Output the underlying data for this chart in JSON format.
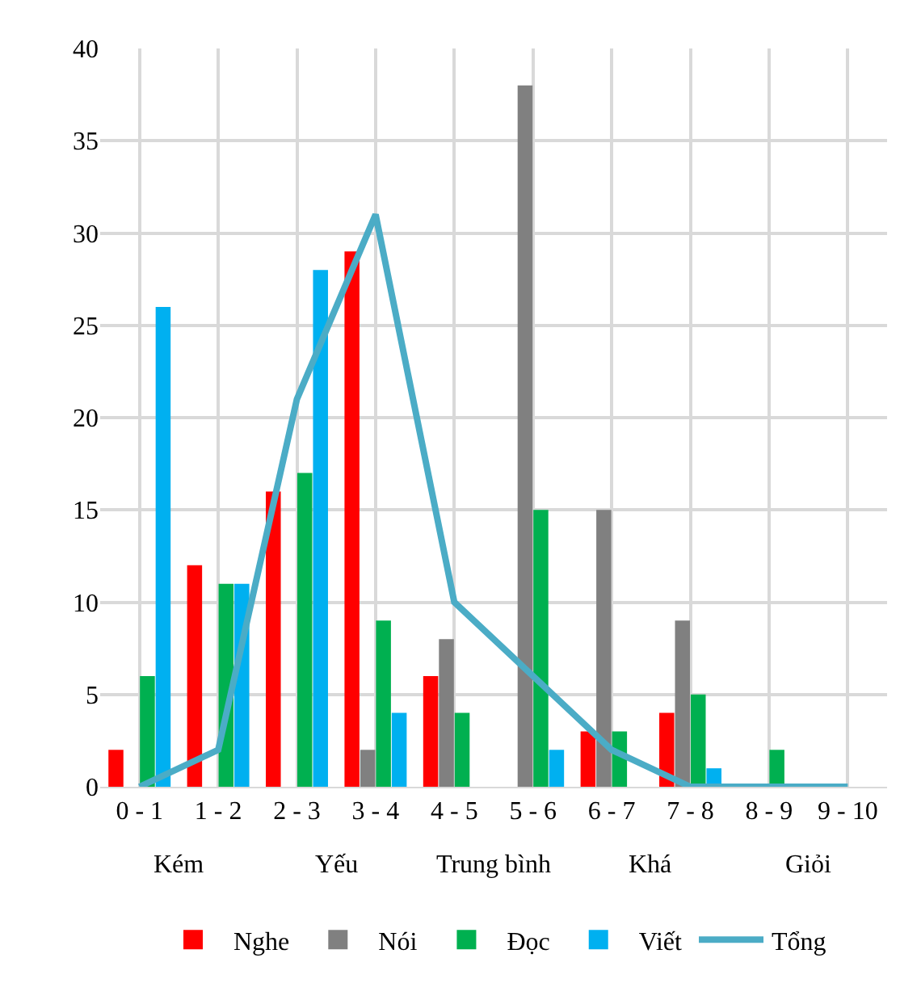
{
  "chart_data": {
    "type": "bar",
    "categories": [
      "0 - 1",
      "1 - 2",
      "2 - 3",
      "3 - 4",
      "4 - 5",
      "5 - 6",
      "6 - 7",
      "7 - 8",
      "8 - 9",
      "9 - 10"
    ],
    "series": [
      {
        "name": "Nghe",
        "color": "#ff0000",
        "values": [
          2,
          12,
          16,
          29,
          6,
          0,
          3,
          4,
          0,
          0
        ]
      },
      {
        "name": "Nói",
        "color": "#808080",
        "values": [
          0,
          0,
          0,
          2,
          8,
          38,
          15,
          9,
          0,
          0
        ]
      },
      {
        "name": "Đọc",
        "color": "#00b050",
        "values": [
          6,
          11,
          17,
          9,
          4,
          15,
          3,
          5,
          2,
          0
        ]
      },
      {
        "name": "Viết",
        "color": "#00b0f0",
        "values": [
          26,
          11,
          28,
          4,
          0,
          2,
          0,
          1,
          0,
          0
        ]
      },
      {
        "name": "Tổng",
        "type": "line",
        "color": "#4bacc6",
        "values": [
          0,
          2,
          21,
          31,
          10,
          6,
          2,
          0,
          0,
          0
        ]
      }
    ],
    "annotations": [
      "Kém",
      "Yếu",
      "Trung bình",
      "Khá",
      "Giỏi"
    ],
    "ylim": [
      0,
      40
    ],
    "yticks": [
      0,
      5,
      10,
      15,
      20,
      25,
      30,
      35,
      40
    ],
    "grid": true,
    "legend": "bottom"
  }
}
